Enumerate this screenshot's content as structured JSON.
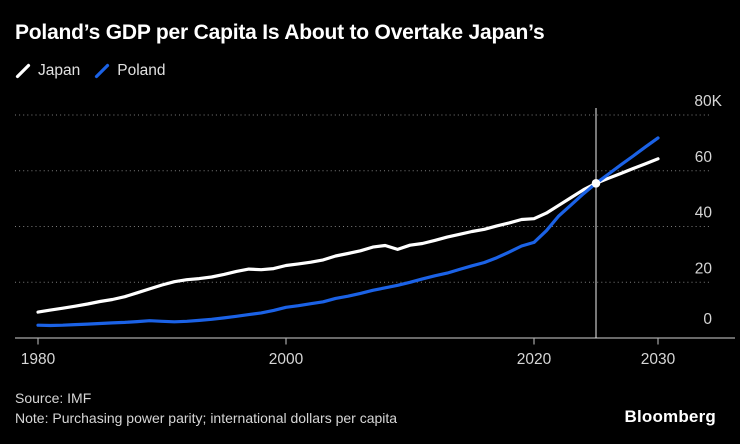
{
  "header": {
    "title": "Poland’s GDP per Capita Is About to Overtake Japan’s",
    "legend": [
      {
        "label": "Japan",
        "color": "#ffffff"
      },
      {
        "label": "Poland",
        "color": "#1b62e6"
      }
    ]
  },
  "footer": {
    "source": "Source: IMF",
    "note": "Note: Purchasing power parity; international dollars per capita",
    "logo": "Bloomberg"
  },
  "chart_data": {
    "type": "line",
    "title": "Poland’s GDP per Capita Is About to Overtake Japan’s",
    "y_unit": "thousands of international dollars per capita (K)",
    "xlim": [
      1980,
      2030
    ],
    "ylim": [
      0,
      80
    ],
    "grid": "horizontal dotted",
    "legend_position": "top-left",
    "x": [
      1980,
      1981,
      1982,
      1983,
      1984,
      1985,
      1986,
      1987,
      1988,
      1989,
      1990,
      1991,
      1992,
      1993,
      1994,
      1995,
      1996,
      1997,
      1998,
      1999,
      2000,
      2001,
      2002,
      2003,
      2004,
      2005,
      2006,
      2007,
      2008,
      2009,
      2010,
      2011,
      2012,
      2013,
      2014,
      2015,
      2016,
      2017,
      2018,
      2019,
      2020,
      2021,
      2022,
      2023,
      2024,
      2025,
      2026,
      2027,
      2028,
      2029,
      2030
    ],
    "series": [
      {
        "name": "Japan",
        "color": "#ffffff",
        "values": [
          9.3,
          10.0,
          10.7,
          11.4,
          12.2,
          13.1,
          13.8,
          14.8,
          16.2,
          17.6,
          19.0,
          20.2,
          20.9,
          21.3,
          21.9,
          22.8,
          23.9,
          24.7,
          24.5,
          24.9,
          26.0,
          26.6,
          27.2,
          28.0,
          29.4,
          30.3,
          31.3,
          32.6,
          33.2,
          31.8,
          33.3,
          33.9,
          35.0,
          36.2,
          37.2,
          38.2,
          39.0,
          40.2,
          41.3,
          42.5,
          42.8,
          44.8,
          47.6,
          50.4,
          53.2,
          55.5,
          57.3,
          59.0,
          60.8,
          62.5,
          64.3
        ]
      },
      {
        "name": "Poland",
        "color": "#1b62e6",
        "values": [
          4.6,
          4.5,
          4.6,
          4.8,
          5.0,
          5.2,
          5.4,
          5.6,
          5.9,
          6.2,
          6.0,
          5.8,
          6.0,
          6.3,
          6.7,
          7.2,
          7.8,
          8.4,
          9.0,
          9.9,
          11.0,
          11.6,
          12.3,
          13.0,
          14.2,
          15.0,
          16.0,
          17.1,
          18.0,
          18.9,
          20.0,
          21.2,
          22.3,
          23.3,
          24.6,
          25.9,
          27.1,
          28.8,
          30.8,
          33.0,
          34.3,
          38.5,
          43.8,
          47.8,
          51.8,
          55.5,
          58.8,
          62.1,
          65.3,
          68.6,
          71.8
        ]
      }
    ],
    "y_ticks": [
      {
        "value": 0,
        "label": "0"
      },
      {
        "value": 20,
        "label": "20"
      },
      {
        "value": 40,
        "label": "40"
      },
      {
        "value": 60,
        "label": "60"
      },
      {
        "value": 80,
        "label": "80K"
      }
    ],
    "x_ticks": [
      {
        "value": 1980,
        "label": "1980"
      },
      {
        "value": 2000,
        "label": "2000"
      },
      {
        "value": 2020,
        "label": "2020"
      },
      {
        "value": 2030,
        "label": "2030"
      }
    ],
    "forecast_divider_year": 2025,
    "crossover_marker": {
      "year": 2025,
      "value": 55.5
    }
  }
}
